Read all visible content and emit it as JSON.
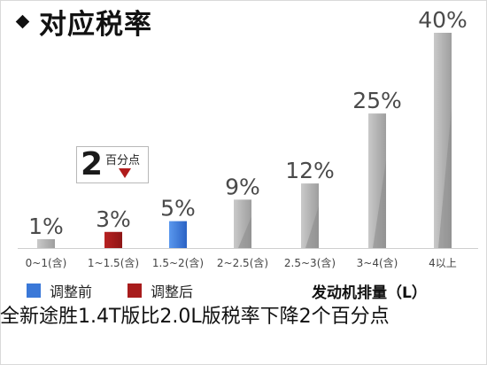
{
  "slide": {
    "title": "对应税率",
    "caption": "全新途胜1.4T版比2.0L版税率下降2个百分点"
  },
  "callout": {
    "big": "2",
    "small": "百分点"
  },
  "legend": [
    {
      "label": "调整前",
      "color": "#3a78d8"
    },
    {
      "label": "调整后",
      "color": "#a81c1c"
    }
  ],
  "colors": {
    "default_bar": "#c6c6c6",
    "before_bar": "#3a78d8",
    "after_bar": "#a81c1c"
  },
  "chart_data": {
    "type": "bar",
    "xlabel": "发动机排量（L）",
    "ylabel": "",
    "categories": [
      "0~1(含)",
      "1~1.5(含)",
      "1.5~2(含)",
      "2~2.5(含)",
      "2.5~3(含)",
      "3~4(含)",
      "4以上"
    ],
    "values": [
      1,
      3,
      5,
      9,
      12,
      25,
      40
    ],
    "value_labels": [
      "1%",
      "3%",
      "5%",
      "9%",
      "12%",
      "25%",
      "40%"
    ],
    "highlight": {
      "1": "调整后",
      "2": "调整前"
    },
    "ylim": [
      0,
      40
    ],
    "grid": false
  }
}
